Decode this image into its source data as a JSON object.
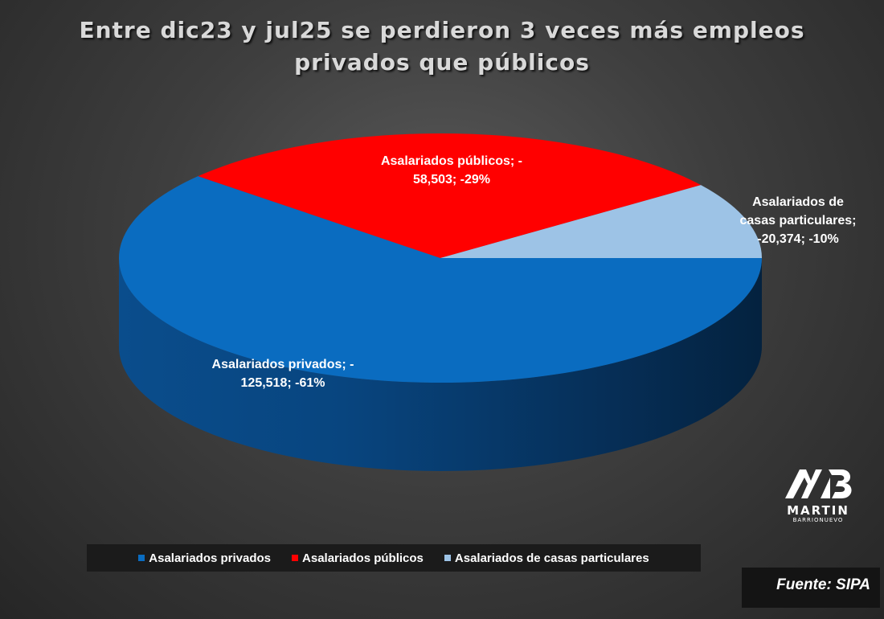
{
  "title": {
    "line1": "Entre dic23 y jul25 se perdieron 3 veces más empleos",
    "line2": "privados que públicos"
  },
  "chart_data": {
    "type": "pie",
    "style": "3d",
    "title": "Entre dic23 y jul25 se perdieron 3 veces más empleos privados que públicos",
    "legend_position": "bottom",
    "series": [
      {
        "name": "Asalariados privados",
        "value": -125518,
        "percent": -61,
        "color": "#0a6cc0",
        "label_lines": [
          "Asalariados privados; -",
          "125,518; -61%"
        ]
      },
      {
        "name": "Asalariados públicos",
        "value": -58503,
        "percent": -29,
        "color": "#ff0000",
        "label_lines": [
          "Asalariados públicos; -",
          "58,503; -29%"
        ]
      },
      {
        "name": "Asalariados de casas particulares",
        "value": -20374,
        "percent": -10,
        "color": "#9dc3e6",
        "label_lines": [
          "Asalariados de",
          "casas particulares;",
          "-20,374; -10%"
        ]
      }
    ]
  },
  "logo": {
    "mark": "MB",
    "word": "MARTIN",
    "sub": "BARRIONUEVO"
  },
  "source": "Fuente: SIPA"
}
